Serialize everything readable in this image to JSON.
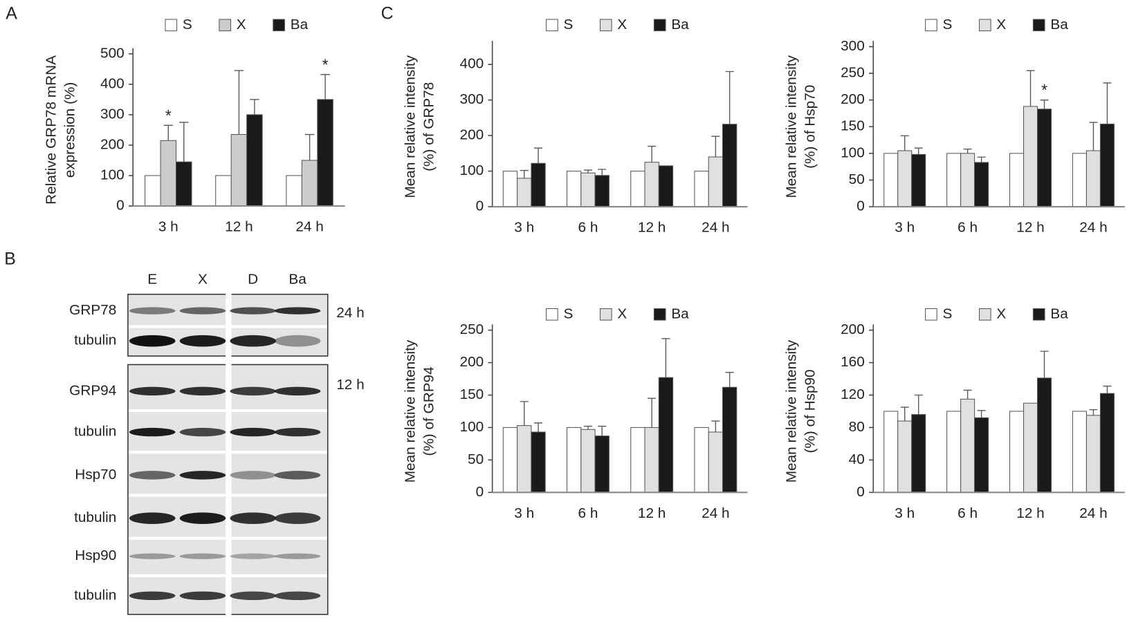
{
  "panel_labels": [
    "A",
    "B",
    "C"
  ],
  "blot": {
    "lanes": [
      "E",
      "X",
      "D",
      "Ba"
    ],
    "rows": [
      "GRP78",
      "tubulin",
      "GRP94",
      "tubulin",
      "Hsp70",
      "tubulin",
      "Hsp90",
      "tubulin"
    ],
    "times": [
      "24 h",
      "12 h"
    ]
  },
  "chart_data": [
    {
      "type": "bar",
      "ylabel": [
        "Relative GRP78 mRNA",
        "expression (%)"
      ],
      "legend": "top",
      "categories": [
        "3 h",
        "12 h",
        "24 h"
      ],
      "ylim": [
        0,
        500
      ],
      "yticks": [
        0,
        100,
        200,
        300,
        400,
        500
      ],
      "series": [
        {
          "name": "S",
          "color": "#ffffff",
          "values": [
            100,
            100,
            100
          ]
        },
        {
          "name": "X",
          "color": "#cccccc",
          "values": [
            215,
            235,
            150
          ],
          "errors": [
            50,
            210,
            85
          ]
        },
        {
          "name": "Ba",
          "color": "#1a1a1a",
          "values": [
            145,
            300,
            350
          ],
          "errors": [
            130,
            50,
            82
          ]
        }
      ],
      "annotations": [
        {
          "text": "*",
          "category": 0,
          "series": 1
        },
        {
          "text": "*",
          "category": 2,
          "series": 2
        }
      ]
    },
    {
      "type": "bar",
      "ylabel": [
        "Mean relative intensity",
        "(%) of GRP78"
      ],
      "legend": "top",
      "categories": [
        "3 h",
        "6 h",
        "12 h",
        "24 h"
      ],
      "ylim": [
        0,
        450
      ],
      "yticks": [
        0,
        100,
        200,
        300,
        400
      ],
      "series": [
        {
          "name": "S",
          "color": "#ffffff",
          "values": [
            100,
            100,
            100,
            100
          ]
        },
        {
          "name": "X",
          "color": "#e0e0e0",
          "values": [
            80,
            95,
            125,
            140
          ],
          "errors": [
            22,
            8,
            45,
            58
          ]
        },
        {
          "name": "Ba",
          "color": "#1a1a1a",
          "values": [
            122,
            88,
            115,
            232
          ],
          "errors": [
            43,
            17,
            null,
            148
          ]
        }
      ]
    },
    {
      "type": "bar",
      "ylabel": [
        "Mean relative intensity",
        "(%) of Hsp70"
      ],
      "legend": "top",
      "categories": [
        "3 h",
        "6 h",
        "12 h",
        "24 h"
      ],
      "ylim": [
        0,
        300
      ],
      "yticks": [
        0,
        50,
        100,
        150,
        200,
        250,
        300
      ],
      "series": [
        {
          "name": "S",
          "color": "#ffffff",
          "values": [
            100,
            100,
            100,
            100
          ]
        },
        {
          "name": "X",
          "color": "#e0e0e0",
          "values": [
            105,
            100,
            188,
            105
          ],
          "errors": [
            28,
            8,
            67,
            53
          ]
        },
        {
          "name": "Ba",
          "color": "#1a1a1a",
          "values": [
            98,
            83,
            183,
            155
          ],
          "errors": [
            12,
            10,
            17,
            77
          ]
        }
      ],
      "annotations": [
        {
          "text": "*",
          "category": 2,
          "series": 2
        }
      ]
    },
    {
      "type": "bar",
      "ylabel": [
        "Mean relative intensity",
        "(%) of GRP94"
      ],
      "legend": "top",
      "categories": [
        "3 h",
        "6 h",
        "12 h",
        "24 h"
      ],
      "ylim": [
        0,
        250
      ],
      "yticks": [
        0,
        50,
        100,
        150,
        200,
        250
      ],
      "series": [
        {
          "name": "S",
          "color": "#ffffff",
          "values": [
            100,
            100,
            100,
            100
          ]
        },
        {
          "name": "X",
          "color": "#e0e0e0",
          "values": [
            103,
            97,
            100,
            93
          ],
          "errors": [
            37,
            5,
            45,
            17
          ]
        },
        {
          "name": "Ba",
          "color": "#1a1a1a",
          "values": [
            93,
            87,
            177,
            162
          ],
          "errors": [
            14,
            15,
            60,
            23
          ]
        }
      ]
    },
    {
      "type": "bar",
      "ylabel": [
        "Mean relative intensity",
        "(%) of Hsp90"
      ],
      "legend": "top",
      "categories": [
        "3 h",
        "6 h",
        "12 h",
        "24 h"
      ],
      "ylim": [
        0,
        200
      ],
      "yticks": [
        0,
        40,
        80,
        120,
        160,
        200
      ],
      "series": [
        {
          "name": "S",
          "color": "#ffffff",
          "values": [
            100,
            100,
            100,
            100
          ]
        },
        {
          "name": "X",
          "color": "#e0e0e0",
          "values": [
            88,
            115,
            110,
            95
          ],
          "errors": [
            17,
            11,
            null,
            7
          ]
        },
        {
          "name": "Ba",
          "color": "#1a1a1a",
          "values": [
            96,
            92,
            141,
            122
          ],
          "errors": [
            24,
            9,
            33,
            9
          ]
        }
      ]
    }
  ]
}
